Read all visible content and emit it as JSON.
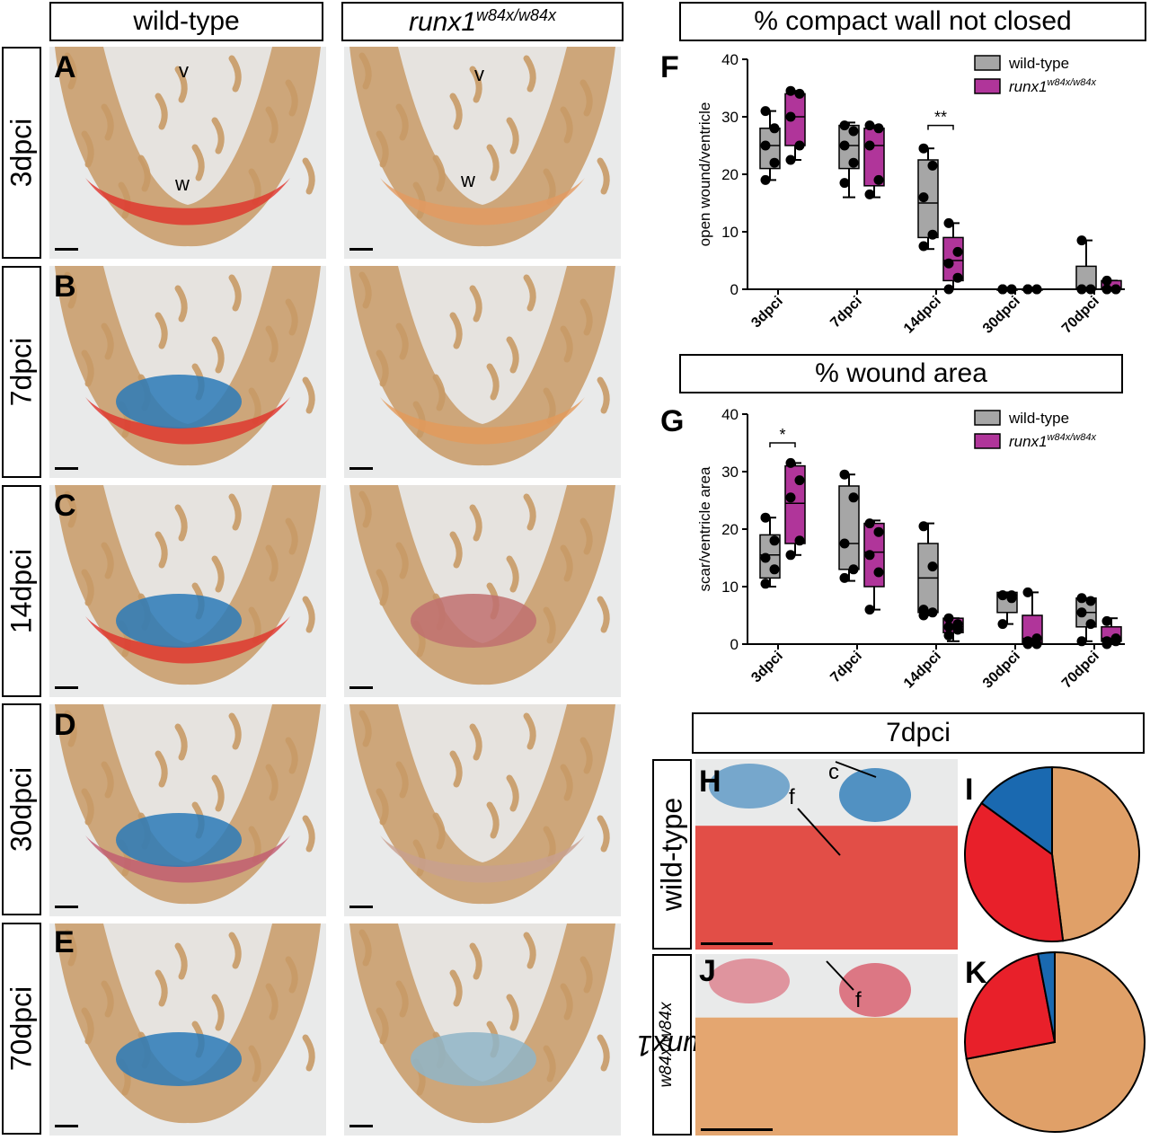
{
  "columns": {
    "wt": "wild-type",
    "mut_base": "runx1",
    "mut_sup": "w84x/w84x"
  },
  "rows": [
    "3dpci",
    "7dpci",
    "14dpci",
    "30dpci",
    "70dpci"
  ],
  "panel_letters": [
    "A",
    "B",
    "C",
    "D",
    "E",
    "F",
    "G",
    "H",
    "I",
    "J",
    "K"
  ],
  "tissue_labels": {
    "v": "v",
    "w": "w",
    "c": "c",
    "f": "f"
  },
  "section_titles": {
    "f": "% compact wall not closed",
    "g": "% wound area",
    "h": "7dpci"
  },
  "hk_rows": {
    "wt": "wild-type",
    "mut_base": "runx1",
    "mut_sup": "w84x/w84x"
  },
  "colors": {
    "wt": "#a6a6a6",
    "mut": "#b0359a",
    "tissue_bg": "#e9eaea",
    "muscle": "#c89a66",
    "fibrin": "#e0322a",
    "collagen": "#2a7ab8",
    "pie_orange": "#e0a068",
    "pie_red": "#e8202a",
    "pie_blue": "#1a69b0"
  },
  "chart_data": [
    {
      "type": "box",
      "title": "% compact wall not closed",
      "ylabel": "open wound/ventricle",
      "xlabel": "",
      "ylim": [
        0,
        40
      ],
      "yticks": [
        0,
        10,
        20,
        30,
        40
      ],
      "categories": [
        "3dpci",
        "7dpci",
        "14dpci",
        "30dpci",
        "70dpci"
      ],
      "legend_position": "top-right",
      "series": [
        {
          "name": "wild-type",
          "box": [
            [
              19,
              21,
              25,
              28,
              31
            ],
            [
              16,
              21,
              25,
              28.5,
              29
            ],
            [
              7,
              9,
              15,
              22.5,
              24.5
            ],
            [
              0,
              0,
              0,
              0,
              0
            ],
            [
              0,
              0,
              0,
              4,
              8.5
            ]
          ],
          "points": [
            [
              19,
              22,
              25,
              28,
              31
            ],
            [
              18.5,
              22,
              25,
              27.5,
              28.5
            ],
            [
              7.5,
              9.5,
              16,
              21.5,
              24.5
            ],
            [
              0,
              0,
              0,
              0,
              0
            ],
            [
              0,
              0,
              0,
              0,
              8.5
            ]
          ]
        },
        {
          "name": "runx1 w84x/w84x",
          "box": [
            [
              22.5,
              25,
              30,
              34,
              34.5
            ],
            [
              16,
              18,
              25,
              28,
              28.5
            ],
            [
              0,
              1.5,
              5,
              9,
              11.5
            ],
            [
              0,
              0,
              0,
              0,
              0
            ],
            [
              0,
              0,
              0,
              1.5,
              1.5
            ]
          ],
          "points": [
            [
              22.5,
              25,
              30,
              34,
              34.5
            ],
            [
              16.5,
              19,
              25,
              28,
              28.5
            ],
            [
              0,
              2,
              4.5,
              6.5,
              11.5
            ],
            [
              0,
              0,
              0,
              0,
              0
            ],
            [
              0,
              0,
              0,
              0,
              1.5
            ]
          ]
        }
      ],
      "annotations": [
        {
          "category": "14dpci",
          "text": "**",
          "y": 28.5
        }
      ]
    },
    {
      "type": "box",
      "title": "% wound area",
      "ylabel": "scar/ventricle area",
      "xlabel": "",
      "ylim": [
        0,
        40
      ],
      "yticks": [
        0,
        10,
        20,
        30,
        40
      ],
      "categories": [
        "3dpci",
        "7dpci",
        "14dpci",
        "30dpci",
        "70dpci"
      ],
      "legend_position": "top-right",
      "series": [
        {
          "name": "wild-type",
          "box": [
            [
              10,
              11.5,
              15.5,
              19,
              22
            ],
            [
              11,
              13,
              17.5,
              27.5,
              29.5
            ],
            [
              5,
              5.5,
              11.5,
              17.5,
              21
            ],
            [
              3.5,
              5.5,
              8.5,
              9,
              9
            ],
            [
              0.5,
              3,
              5.5,
              8,
              8
            ]
          ],
          "points": [
            [
              10.5,
              13,
              15,
              18,
              22
            ],
            [
              11.5,
              13,
              17.5,
              25.5,
              29.5
            ],
            [
              5,
              5.5,
              6,
              13.5,
              20.5
            ],
            [
              3.5,
              8,
              8.5,
              8.5,
              8.5
            ],
            [
              0.5,
              3.5,
              5.5,
              7.5,
              8
            ]
          ]
        },
        {
          "name": "runx1 w84x/w84x",
          "box": [
            [
              15.5,
              17.5,
              24.5,
              31,
              31.5
            ],
            [
              6,
              10,
              16,
              21,
              21.5
            ],
            [
              0.5,
              2,
              3,
              4.5,
              4.5
            ],
            [
              0,
              0,
              1,
              5,
              9
            ],
            [
              0,
              0.5,
              1,
              3,
              4.5
            ]
          ],
          "points": [
            [
              15.5,
              18,
              25.5,
              28.5,
              31.5
            ],
            [
              6,
              12.5,
              15.5,
              19.5,
              21
            ],
            [
              1.5,
              2.5,
              3,
              3.5,
              4.5
            ],
            [
              0,
              0,
              0.5,
              1,
              9
            ],
            [
              0,
              0.5,
              0.5,
              1,
              4
            ]
          ]
        }
      ],
      "annotations": [
        {
          "category": "3dpci",
          "text": "*",
          "y": 35
        }
      ]
    },
    {
      "type": "pie",
      "panel": "I",
      "slices": [
        {
          "color": "pie_orange",
          "fraction": 0.48
        },
        {
          "color": "pie_red",
          "fraction": 0.37
        },
        {
          "color": "pie_blue",
          "fraction": 0.15
        }
      ]
    },
    {
      "type": "pie",
      "panel": "K",
      "slices": [
        {
          "color": "pie_orange",
          "fraction": 0.72
        },
        {
          "color": "pie_red",
          "fraction": 0.25
        },
        {
          "color": "pie_blue",
          "fraction": 0.03
        }
      ]
    }
  ]
}
